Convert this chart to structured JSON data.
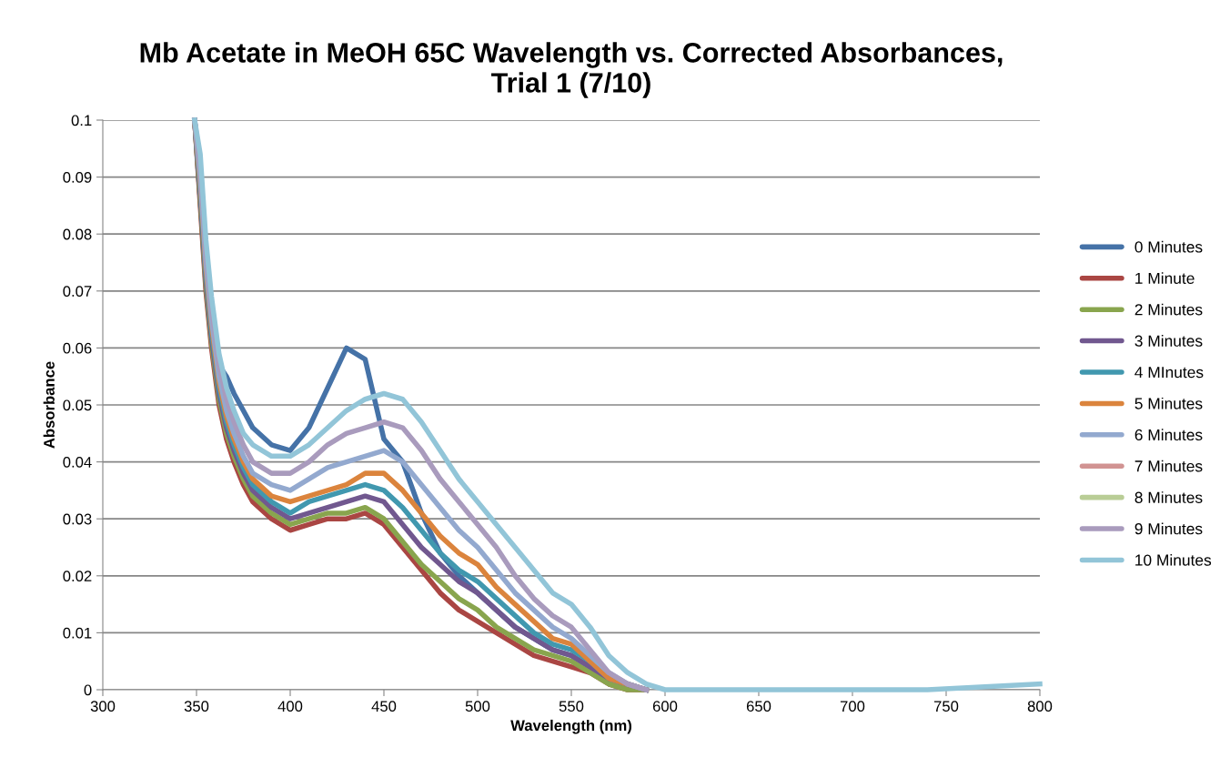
{
  "chart_data": {
    "type": "line",
    "title": "Mb Acetate in MeOH 65C Wavelength vs. Corrected Absorbances,\nTrial 1 (7/10)",
    "xlabel": "Wavelength (nm)",
    "ylabel": "Absorbance",
    "x": [
      349,
      352,
      355,
      358,
      362,
      366,
      370,
      375,
      380,
      390,
      400,
      410,
      420,
      430,
      440,
      450,
      460,
      470,
      480,
      490,
      500,
      510,
      520,
      530,
      540,
      550,
      560,
      570,
      580,
      590,
      600,
      650,
      700,
      740,
      800
    ],
    "xlim": [
      300,
      800
    ],
    "xticks": [
      300,
      350,
      400,
      450,
      500,
      550,
      600,
      650,
      700,
      750,
      800
    ],
    "ylim": [
      0,
      0.1
    ],
    "yticks": [
      0,
      0.01,
      0.02,
      0.03,
      0.04,
      0.05,
      0.06,
      0.07,
      0.08,
      0.09,
      0.1
    ],
    "grid": "y",
    "legend": "right",
    "marker": "none",
    "line_style": "solid",
    "series": [
      {
        "name": "0 Minutes",
        "color": "#4572a7",
        "values": [
          0.1,
          0.086,
          0.072,
          0.063,
          0.057,
          0.055,
          0.052,
          0.049,
          0.046,
          0.043,
          0.042,
          0.046,
          0.053,
          0.06,
          0.058,
          0.044,
          0.04,
          0.031,
          0.024,
          0.02,
          0.017,
          0.014,
          0.011,
          0.009,
          0.007,
          0.006,
          0.004,
          0.002,
          0.001,
          0,
          null,
          null,
          null,
          null,
          null
        ]
      },
      {
        "name": "1 Minute",
        "color": "#aa4643",
        "values": [
          0.1,
          0.085,
          0.07,
          0.06,
          0.05,
          0.044,
          0.04,
          0.036,
          0.033,
          0.03,
          0.028,
          0.029,
          0.03,
          0.03,
          0.031,
          0.029,
          0.025,
          0.021,
          0.017,
          0.014,
          0.012,
          0.01,
          0.008,
          0.006,
          0.005,
          0.004,
          0.003,
          0.001,
          0,
          0,
          null,
          null,
          null,
          null,
          null
        ]
      },
      {
        "name": "2 Minutes",
        "color": "#89a54e",
        "values": [
          0.1,
          0.086,
          0.071,
          0.061,
          0.051,
          0.045,
          0.041,
          0.037,
          0.034,
          0.031,
          0.029,
          0.03,
          0.031,
          0.031,
          0.032,
          0.03,
          0.026,
          0.022,
          0.019,
          0.016,
          0.014,
          0.011,
          0.009,
          0.007,
          0.006,
          0.005,
          0.003,
          0.001,
          0,
          0,
          null,
          null,
          null,
          null,
          null
        ]
      },
      {
        "name": "3 Minutes",
        "color": "#71588f",
        "values": [
          0.1,
          0.087,
          0.072,
          0.062,
          0.052,
          0.046,
          0.042,
          0.038,
          0.035,
          0.032,
          0.03,
          0.031,
          0.032,
          0.033,
          0.034,
          0.033,
          0.029,
          0.025,
          0.022,
          0.019,
          0.017,
          0.014,
          0.011,
          0.009,
          0.007,
          0.006,
          0.004,
          0.002,
          0.001,
          0,
          null,
          null,
          null,
          null,
          null
        ]
      },
      {
        "name": "4 MInutes",
        "color": "#4198af",
        "values": [
          0.1,
          0.088,
          0.073,
          0.063,
          0.053,
          0.047,
          0.043,
          0.039,
          0.036,
          0.033,
          0.031,
          0.033,
          0.034,
          0.035,
          0.036,
          0.035,
          0.032,
          0.028,
          0.024,
          0.021,
          0.019,
          0.016,
          0.013,
          0.01,
          0.008,
          0.007,
          0.005,
          0.002,
          0.001,
          0,
          null,
          null,
          null,
          null,
          null
        ]
      },
      {
        "name": "5 Minutes",
        "color": "#db843d",
        "values": [
          0.1,
          0.089,
          0.074,
          0.064,
          0.054,
          0.048,
          0.044,
          0.04,
          0.037,
          0.034,
          0.033,
          0.034,
          0.035,
          0.036,
          0.038,
          0.038,
          0.035,
          0.031,
          0.027,
          0.024,
          0.022,
          0.018,
          0.015,
          0.012,
          0.009,
          0.008,
          0.005,
          0.002,
          0.001,
          0,
          null,
          null,
          null,
          null,
          null
        ]
      },
      {
        "name": "6 Minutes",
        "color": "#93a9cf",
        "values": [
          0.1,
          0.09,
          0.075,
          0.065,
          0.055,
          0.049,
          0.045,
          0.041,
          0.038,
          0.036,
          0.035,
          0.037,
          0.039,
          0.04,
          0.041,
          0.042,
          0.04,
          0.036,
          0.032,
          0.028,
          0.025,
          0.021,
          0.017,
          0.014,
          0.011,
          0.009,
          0.006,
          0.003,
          0.001,
          0,
          null,
          null,
          null,
          null,
          null
        ]
      },
      {
        "name": "7 Minutes",
        "color": "#d19392",
        "values": [
          null,
          null,
          null,
          null,
          null,
          null,
          null,
          null,
          null,
          null,
          null,
          null,
          null,
          null,
          null,
          null,
          null,
          null,
          null,
          null,
          null,
          null,
          null,
          null,
          null,
          null,
          null,
          null,
          null,
          null,
          null,
          null,
          null,
          null,
          null
        ]
      },
      {
        "name": "8 Minutes",
        "color": "#b9cd96",
        "values": [
          null,
          null,
          null,
          null,
          null,
          null,
          null,
          null,
          null,
          null,
          null,
          null,
          null,
          null,
          null,
          null,
          null,
          null,
          null,
          null,
          null,
          null,
          null,
          null,
          null,
          null,
          null,
          null,
          null,
          null,
          null,
          null,
          null,
          null,
          null
        ]
      },
      {
        "name": "9 Minutes",
        "color": "#a99bbd",
        "values": [
          0.1,
          0.092,
          0.077,
          0.067,
          0.057,
          0.051,
          0.047,
          0.043,
          0.04,
          0.038,
          0.038,
          0.04,
          0.043,
          0.045,
          0.046,
          0.047,
          0.046,
          0.042,
          0.037,
          0.033,
          0.029,
          0.025,
          0.02,
          0.016,
          0.013,
          0.011,
          0.007,
          0.003,
          0.001,
          0,
          null,
          null,
          null,
          null,
          null
        ]
      },
      {
        "name": "10 Minutes",
        "color": "#92c5d8",
        "values": [
          0.1,
          0.094,
          0.079,
          0.069,
          0.059,
          0.053,
          0.049,
          0.045,
          0.043,
          0.041,
          0.041,
          0.043,
          0.046,
          0.049,
          0.051,
          0.052,
          0.051,
          0.047,
          0.042,
          0.037,
          0.033,
          0.029,
          0.025,
          0.021,
          0.017,
          0.015,
          0.011,
          0.006,
          0.003,
          0.001,
          0,
          0,
          0,
          0,
          0.001
        ]
      }
    ]
  }
}
